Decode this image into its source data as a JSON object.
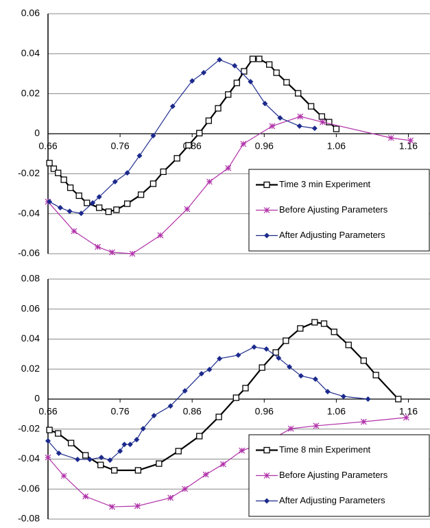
{
  "chart_data": [
    {
      "type": "line",
      "xlim": [
        0.66,
        1.19
      ],
      "xticks": [
        0.66,
        0.76,
        0.86,
        0.96,
        1.06,
        1.16
      ],
      "ylim": [
        -0.06,
        0.06
      ],
      "yticks": [
        0.06,
        0.04,
        0.02,
        0,
        -0.02,
        -0.04,
        -0.06
      ],
      "grid": true,
      "legend": "lower right",
      "series": [
        {
          "name": "Time 3 min Experiment",
          "color": "#000000",
          "marker": "square",
          "x": [
            0.662,
            0.668,
            0.674,
            0.682,
            0.691,
            0.703,
            0.714,
            0.731,
            0.744,
            0.755,
            0.77,
            0.789,
            0.806,
            0.82,
            0.839,
            0.855,
            0.87,
            0.883,
            0.896,
            0.91,
            0.922,
            0.932,
            0.944,
            0.953,
            0.967,
            0.977,
            0.991,
            1.007,
            1.025,
            1.04,
            1.05,
            1.06
          ],
          "values": [
            -0.0147,
            -0.0175,
            -0.0196,
            -0.023,
            -0.027,
            -0.031,
            -0.0346,
            -0.037,
            -0.039,
            -0.038,
            -0.035,
            -0.0305,
            -0.025,
            -0.019,
            -0.0123,
            -0.0058,
            0.0003,
            0.0065,
            0.0127,
            0.0196,
            0.0254,
            0.0312,
            0.0374,
            0.0374,
            0.0346,
            0.0305,
            0.0257,
            0.0202,
            0.0137,
            0.0086,
            0.0058,
            0.0024
          ]
        },
        {
          "name": "Before Ajusting Parameters",
          "color": "#b030a8",
          "marker": "star",
          "x": [
            0.66,
            0.696,
            0.729,
            0.749,
            0.777,
            0.816,
            0.853,
            0.884,
            0.91,
            0.931,
            0.971,
            1.01,
            1.041,
            1.136,
            1.163
          ],
          "values": [
            -0.034,
            -0.0487,
            -0.0566,
            -0.0593,
            -0.06,
            -0.0508,
            -0.0377,
            -0.024,
            -0.0172,
            -0.0051,
            0.0038,
            0.0086,
            0.0058,
            -0.0021,
            -0.0034
          ]
        },
        {
          "name": "After Adjusting Parameters",
          "color": "#1c2a8c",
          "marker": "diamond",
          "x": [
            0.662,
            0.677,
            0.69,
            0.706,
            0.722,
            0.731,
            0.753,
            0.77,
            0.787,
            0.806,
            0.833,
            0.86,
            0.876,
            0.898,
            0.919,
            0.941,
            0.961,
            0.982,
            1.009,
            1.03
          ],
          "values": [
            -0.034,
            -0.037,
            -0.0388,
            -0.0398,
            -0.0346,
            -0.0316,
            -0.024,
            -0.0196,
            -0.011,
            -0.001,
            0.0137,
            0.0264,
            0.0305,
            0.037,
            0.034,
            0.026,
            0.0151,
            0.0079,
            0.0038,
            0.0027
          ]
        }
      ]
    },
    {
      "type": "line",
      "xlim": [
        0.66,
        1.19
      ],
      "xticks": [
        0.66,
        0.76,
        0.86,
        0.96,
        1.06,
        1.16
      ],
      "ylim": [
        -0.08,
        0.08
      ],
      "yticks": [
        0.08,
        0.06,
        0.04,
        0.02,
        0,
        -0.02,
        -0.04,
        -0.06,
        -0.08
      ],
      "grid": true,
      "legend": "lower right",
      "series": [
        {
          "name": "Time 8 min Experiment",
          "color": "#000000",
          "marker": "square",
          "x": [
            0.662,
            0.674,
            0.692,
            0.712,
            0.733,
            0.752,
            0.785,
            0.814,
            0.841,
            0.87,
            0.897,
            0.921,
            0.934,
            0.957,
            0.976,
            0.99,
            1.01,
            1.03,
            1.043,
            1.057,
            1.077,
            1.098,
            1.115,
            1.146
          ],
          "values": [
            -0.0206,
            -0.0229,
            -0.0293,
            -0.0375,
            -0.0439,
            -0.0475,
            -0.0475,
            -0.043,
            -0.0347,
            -0.0247,
            -0.0119,
            0.0009,
            0.0073,
            0.021,
            0.0311,
            0.0389,
            0.0471,
            0.0512,
            0.0503,
            0.0448,
            0.0361,
            0.0256,
            0.016,
            0.0
          ]
        },
        {
          "name": "Before Ajusting Parameters",
          "color": "#b030a8",
          "marker": "star",
          "x": [
            0.66,
            0.682,
            0.712,
            0.749,
            0.784,
            0.83,
            0.85,
            0.879,
            0.903,
            0.929,
            0.963,
            0.997,
            1.032,
            1.098,
            1.157
          ],
          "values": [
            -0.0389,
            -0.0512,
            -0.0649,
            -0.0718,
            -0.0713,
            -0.0658,
            -0.0599,
            -0.0503,
            -0.0434,
            -0.0343,
            -0.0288,
            -0.0197,
            -0.0178,
            -0.0151,
            -0.0123
          ]
        },
        {
          "name": "After Adjusting Parameters",
          "color": "#1c2a8c",
          "marker": "diamond",
          "x": [
            0.66,
            0.675,
            0.701,
            0.718,
            0.734,
            0.746,
            0.76,
            0.766,
            0.774,
            0.783,
            0.792,
            0.807,
            0.83,
            0.85,
            0.873,
            0.884,
            0.898,
            0.924,
            0.946,
            0.963,
            0.98,
            0.995,
            1.011,
            1.031,
            1.048,
            1.07,
            1.104
          ],
          "values": [
            -0.0279,
            -0.0361,
            -0.0402,
            -0.0402,
            -0.0389,
            -0.0407,
            -0.0347,
            -0.0302,
            -0.0302,
            -0.027,
            -0.0197,
            -0.011,
            -0.0046,
            0.0055,
            0.0169,
            0.0197,
            0.027,
            0.0293,
            0.0347,
            0.0334,
            0.0274,
            0.0215,
            0.0155,
            0.0133,
            0.005,
            0.0018,
            0.0
          ]
        }
      ]
    }
  ]
}
